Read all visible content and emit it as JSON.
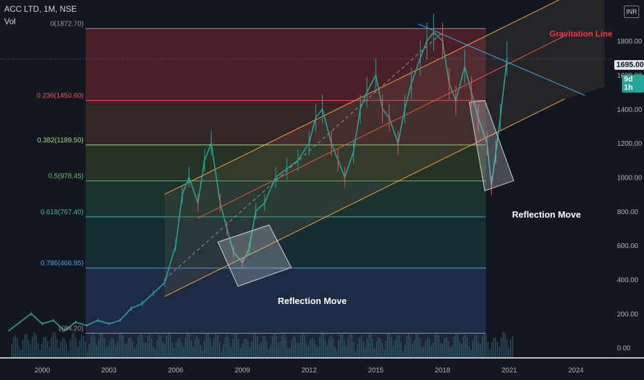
{
  "header": {
    "symbol_line": "ACC LTD, 1M, NSE",
    "vol_label": "Vol",
    "currency": "INR"
  },
  "price_badge": "1695.00",
  "time_badge": "9d 1h",
  "annotations": {
    "gravitation": "Gravitation Line",
    "reflection_1": "Reflection Move",
    "reflection_2": "Reflection Move"
  },
  "fib_levels": [
    {
      "label": "0(1872.70)",
      "value": 1872.7,
      "color": "#9598a1",
      "fill": "rgba(120,40,45,0.55)"
    },
    {
      "label": "0.236(1450.60)",
      "value": 1450.6,
      "color": "#f05a4f",
      "fill": "rgba(100,55,45,0.45)"
    },
    {
      "label": "0.382(1189.50)",
      "value": 1189.5,
      "color": "#a6d77b",
      "fill": "rgba(60,85,40,0.45)"
    },
    {
      "label": "0.5(978.45)",
      "value": 978.45,
      "color": "#5fc46a",
      "fill": "rgba(30,85,60,0.45)"
    },
    {
      "label": "0.618(767.40)",
      "value": 767.4,
      "color": "#3fb5a5",
      "fill": "rgba(25,75,80,0.45)"
    },
    {
      "label": "0.786(466.95)",
      "value": 466.95,
      "color": "#4ba3e3",
      "fill": "rgba(40,70,110,0.45)"
    },
    {
      "label": "1(84.20)",
      "value": 84.2,
      "color": "#9598a1",
      "fill": "rgba(60,62,72,0.45)"
    }
  ],
  "chart_data": {
    "type": "line",
    "title": "ACC LTD, 1M, NSE",
    "x_ticks": [
      "2000",
      "2003",
      "2006",
      "2009",
      "2012",
      "2015",
      "2018",
      "2021",
      "2024"
    ],
    "y_ticks": [
      "0.00",
      "200.00",
      "400.00",
      "600.00",
      "800.00",
      "1000.00",
      "1200.00",
      "1400.00",
      "1600.00",
      "1800.00"
    ],
    "ylim": [
      -60,
      2040
    ],
    "xlim": [
      1998.1,
      2025.6
    ],
    "series": [
      {
        "x": [
          1998.5,
          1999,
          1999.5,
          2000,
          2000.5,
          2001,
          2001.5,
          2002,
          2002.5,
          2003,
          2003.5,
          2004,
          2004.5,
          2005,
          2005.5,
          2006,
          2006.3,
          2006.6,
          2007,
          2007.3,
          2007.6,
          2008,
          2008.3,
          2008.6,
          2009,
          2009.3,
          2009.6,
          2010,
          2010.5,
          2011,
          2011.5,
          2012,
          2012.3,
          2012.6,
          2013,
          2013.3,
          2013.6,
          2014,
          2014.3,
          2014.6,
          2015,
          2015.3,
          2015.6,
          2016,
          2016.3,
          2016.6,
          2017,
          2017.3,
          2017.6,
          2018,
          2018.3,
          2018.6,
          2019,
          2019.3,
          2019.6,
          2020,
          2020.2,
          2020.4,
          2020.6,
          2020.9
        ],
        "values": [
          100,
          150,
          200,
          140,
          160,
          100,
          150,
          130,
          160,
          140,
          160,
          230,
          260,
          320,
          380,
          600,
          900,
          1000,
          850,
          1100,
          1200,
          850,
          700,
          560,
          500,
          580,
          800,
          850,
          1000,
          1050,
          1100,
          1200,
          1350,
          1400,
          1200,
          1100,
          1000,
          1150,
          1400,
          1500,
          1600,
          1400,
          1350,
          1200,
          1400,
          1550,
          1700,
          1800,
          1850,
          1800,
          1550,
          1450,
          1650,
          1500,
          1350,
          1200,
          950,
          1150,
          1350,
          1695
        ]
      }
    ],
    "last_price": 1695.0
  }
}
